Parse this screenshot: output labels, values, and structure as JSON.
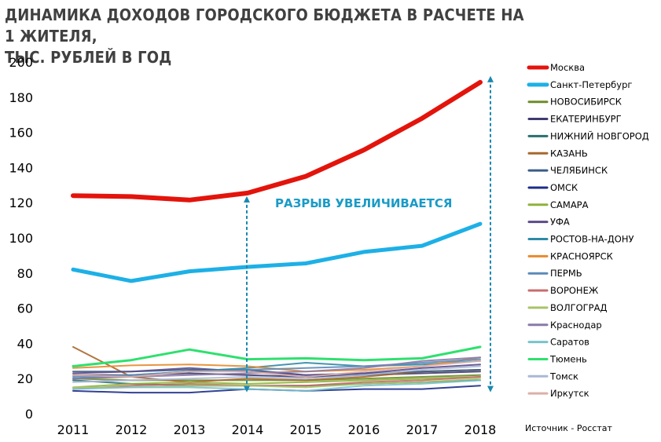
{
  "title": "ДИНАМИКА ДОХОДОВ ГОРОДСКОГО БЮДЖЕТА В РАСЧЕТЕ НА 1 ЖИТЕЛЯ, ТЫС. РУБЛЕЙ В ГОД",
  "source": "Источник - Росстат",
  "annotation": "РАЗРЫВ УВЕЛИЧИВАЕТСЯ",
  "chart_data": {
    "type": "line",
    "title": "ДИНАМИКА ДОХОДОВ ГОРОДСКОГО БЮДЖЕТА В РАСЧЕТЕ НА 1 ЖИТЕЛЯ, ТЫС. РУБЛЕЙ В ГОД",
    "xlabel": "",
    "ylabel": "",
    "x": [
      "2011",
      "2012",
      "2013",
      "2014",
      "2015",
      "2016",
      "2017",
      "2018"
    ],
    "ylim": [
      0,
      200
    ],
    "yticks": [
      0,
      20,
      40,
      60,
      80,
      100,
      120,
      140,
      160,
      180,
      200
    ],
    "grid": false,
    "legend": "right",
    "annotation": "РАЗРЫВ УВЕЛИЧИВАЕТСЯ",
    "series": [
      {
        "name": "Москва",
        "color": "#e3140c",
        "width": 6,
        "values": [
          124,
          123.5,
          121.5,
          125.5,
          135,
          150,
          168,
          188.5
        ]
      },
      {
        "name": "Санкт-Петербург",
        "color": "#1db0e6",
        "width": 5,
        "values": [
          82,
          75.5,
          81,
          83.5,
          85.5,
          92,
          95.5,
          108
        ]
      },
      {
        "name": "НОВОСИБИРСК",
        "color": "#6e8c2a",
        "width": 2,
        "values": [
          20,
          19,
          19,
          19,
          19,
          20,
          21,
          22
        ]
      },
      {
        "name": "ЕКАТЕРИНБУРГ",
        "color": "#3f3a6e",
        "width": 2,
        "values": [
          22,
          22,
          23,
          22,
          21,
          22,
          23,
          24
        ]
      },
      {
        "name": "НИЖНИЙ НОВГОРОД",
        "color": "#2b6f6f",
        "width": 2,
        "values": [
          19,
          17,
          16,
          16,
          16,
          17,
          18,
          19
        ]
      },
      {
        "name": "КАЗАНЬ",
        "color": "#a7682c",
        "width": 2,
        "values": [
          38,
          21,
          18,
          20,
          19,
          21,
          24,
          25
        ]
      },
      {
        "name": "ЧЕЛЯБИНСК",
        "color": "#3a5d88",
        "width": 2,
        "values": [
          24,
          24,
          25,
          25,
          22,
          23,
          24,
          25
        ]
      },
      {
        "name": "ОМСК",
        "color": "#1d2c8a",
        "width": 2,
        "values": [
          13,
          12,
          12,
          14,
          13,
          14,
          14,
          16
        ]
      },
      {
        "name": "САМАРА",
        "color": "#8db23a",
        "width": 2,
        "values": [
          15,
          17,
          18,
          17,
          18,
          19,
          20,
          21
        ]
      },
      {
        "name": "УФА",
        "color": "#5c4a8a",
        "width": 2,
        "values": [
          23,
          24,
          26,
          24,
          22,
          23,
          26,
          28
        ]
      },
      {
        "name": "РОСТОВ-НА-ДОНУ",
        "color": "#2e8aa6",
        "width": 2,
        "values": [
          20,
          22,
          24,
          26,
          29,
          27,
          28,
          30
        ]
      },
      {
        "name": "КРАСНОЯРСК",
        "color": "#e68a2e",
        "width": 2,
        "values": [
          26,
          27.5,
          28,
          27,
          24,
          25,
          27,
          32
        ]
      },
      {
        "name": "ПЕРМЬ",
        "color": "#5d8ab8",
        "width": 2,
        "values": [
          21,
          22,
          24,
          25,
          26,
          27,
          29,
          31
        ]
      },
      {
        "name": "ВОРОНЕЖ",
        "color": "#c86c6c",
        "width": 2,
        "values": [
          14,
          16,
          17,
          16,
          16,
          18,
          19,
          21
        ]
      },
      {
        "name": "ВОЛГОГРАД",
        "color": "#a8c46a",
        "width": 2,
        "values": [
          15,
          15,
          16,
          16,
          15,
          17,
          18,
          20
        ]
      },
      {
        "name": "Краснодар",
        "color": "#8a7aa8",
        "width": 2,
        "values": [
          20,
          21,
          22,
          23,
          24,
          26,
          30,
          32
        ]
      },
      {
        "name": "Саратов",
        "color": "#7ac2cc",
        "width": 2,
        "values": [
          14,
          15,
          15,
          14,
          13,
          16,
          17,
          19
        ]
      },
      {
        "name": "Тюмень",
        "color": "#2ee06e",
        "width": 3,
        "values": [
          27,
          30.5,
          36.5,
          31,
          31.5,
          30.5,
          31.5,
          38
        ]
      },
      {
        "name": "Томск",
        "color": "#a9b8d6",
        "width": 2,
        "values": [
          18,
          19,
          20,
          21,
          20,
          22,
          25,
          27
        ]
      },
      {
        "name": "Иркутск",
        "color": "#dcb0a8",
        "width": 2,
        "values": [
          22,
          21,
          24,
          24,
          21,
          24,
          27,
          30
        ]
      }
    ]
  }
}
